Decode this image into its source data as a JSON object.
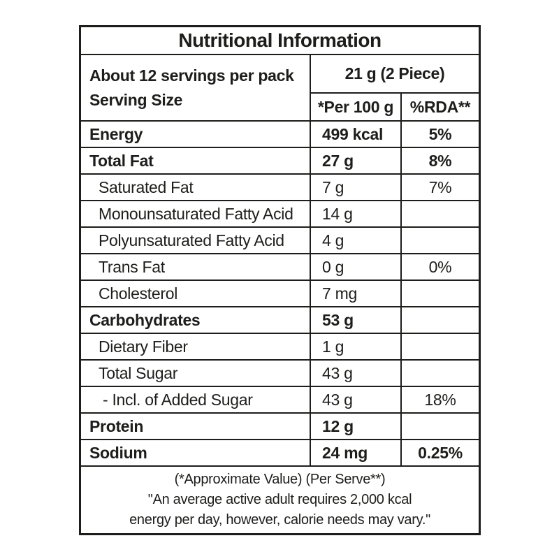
{
  "title": "Nutritional Information",
  "header": {
    "servings_line1": "About 12 servings per pack",
    "servings_line2": "Serving Size",
    "serving_amount": "21 g (2 Piece)",
    "col_per100": "*Per 100 g",
    "col_rda": "%RDA**"
  },
  "rows": [
    {
      "label": "Energy",
      "value": "499 kcal",
      "rda": "5%",
      "bold": true,
      "indent": 0
    },
    {
      "label": "Total Fat",
      "value": "27 g",
      "rda": "8%",
      "bold": true,
      "indent": 0
    },
    {
      "label": "Saturated Fat",
      "value": "7 g",
      "rda": "7%",
      "bold": false,
      "indent": 1
    },
    {
      "label": "Monounsaturated Fatty Acid",
      "value": "14 g",
      "rda": "",
      "bold": false,
      "indent": 1
    },
    {
      "label": "Polyunsaturated Fatty Acid",
      "value": "4 g",
      "rda": "",
      "bold": false,
      "indent": 1
    },
    {
      "label": "Trans Fat",
      "value": "0 g",
      "rda": "0%",
      "bold": false,
      "indent": 1
    },
    {
      "label": "Cholesterol",
      "value": "7 mg",
      "rda": "",
      "bold": false,
      "indent": 1
    },
    {
      "label": "Carbohydrates",
      "value": "53 g",
      "rda": "",
      "bold": true,
      "indent": 0
    },
    {
      "label": "Dietary Fiber",
      "value": "1 g",
      "rda": "",
      "bold": false,
      "indent": 1
    },
    {
      "label": "Total Sugar",
      "value": "43 g",
      "rda": "",
      "bold": false,
      "indent": 1
    },
    {
      "label": "- Incl. of Added Sugar",
      "value": "43 g",
      "rda": "18%",
      "bold": false,
      "indent": 2
    },
    {
      "label": "Protein",
      "value": "12 g",
      "rda": "",
      "bold": true,
      "indent": 0
    },
    {
      "label": "Sodium",
      "value": "24 mg",
      "rda": "0.25%",
      "bold": true,
      "indent": 0
    }
  ],
  "footer": {
    "line1": "(*Approximate Value) (Per Serve**)",
    "line2": "\"An average active adult requires 2,000 kcal",
    "line3": "energy per day, however, calorie needs may vary.\""
  },
  "colors": {
    "ink": "#1d1d1b",
    "background": "#ffffff"
  }
}
